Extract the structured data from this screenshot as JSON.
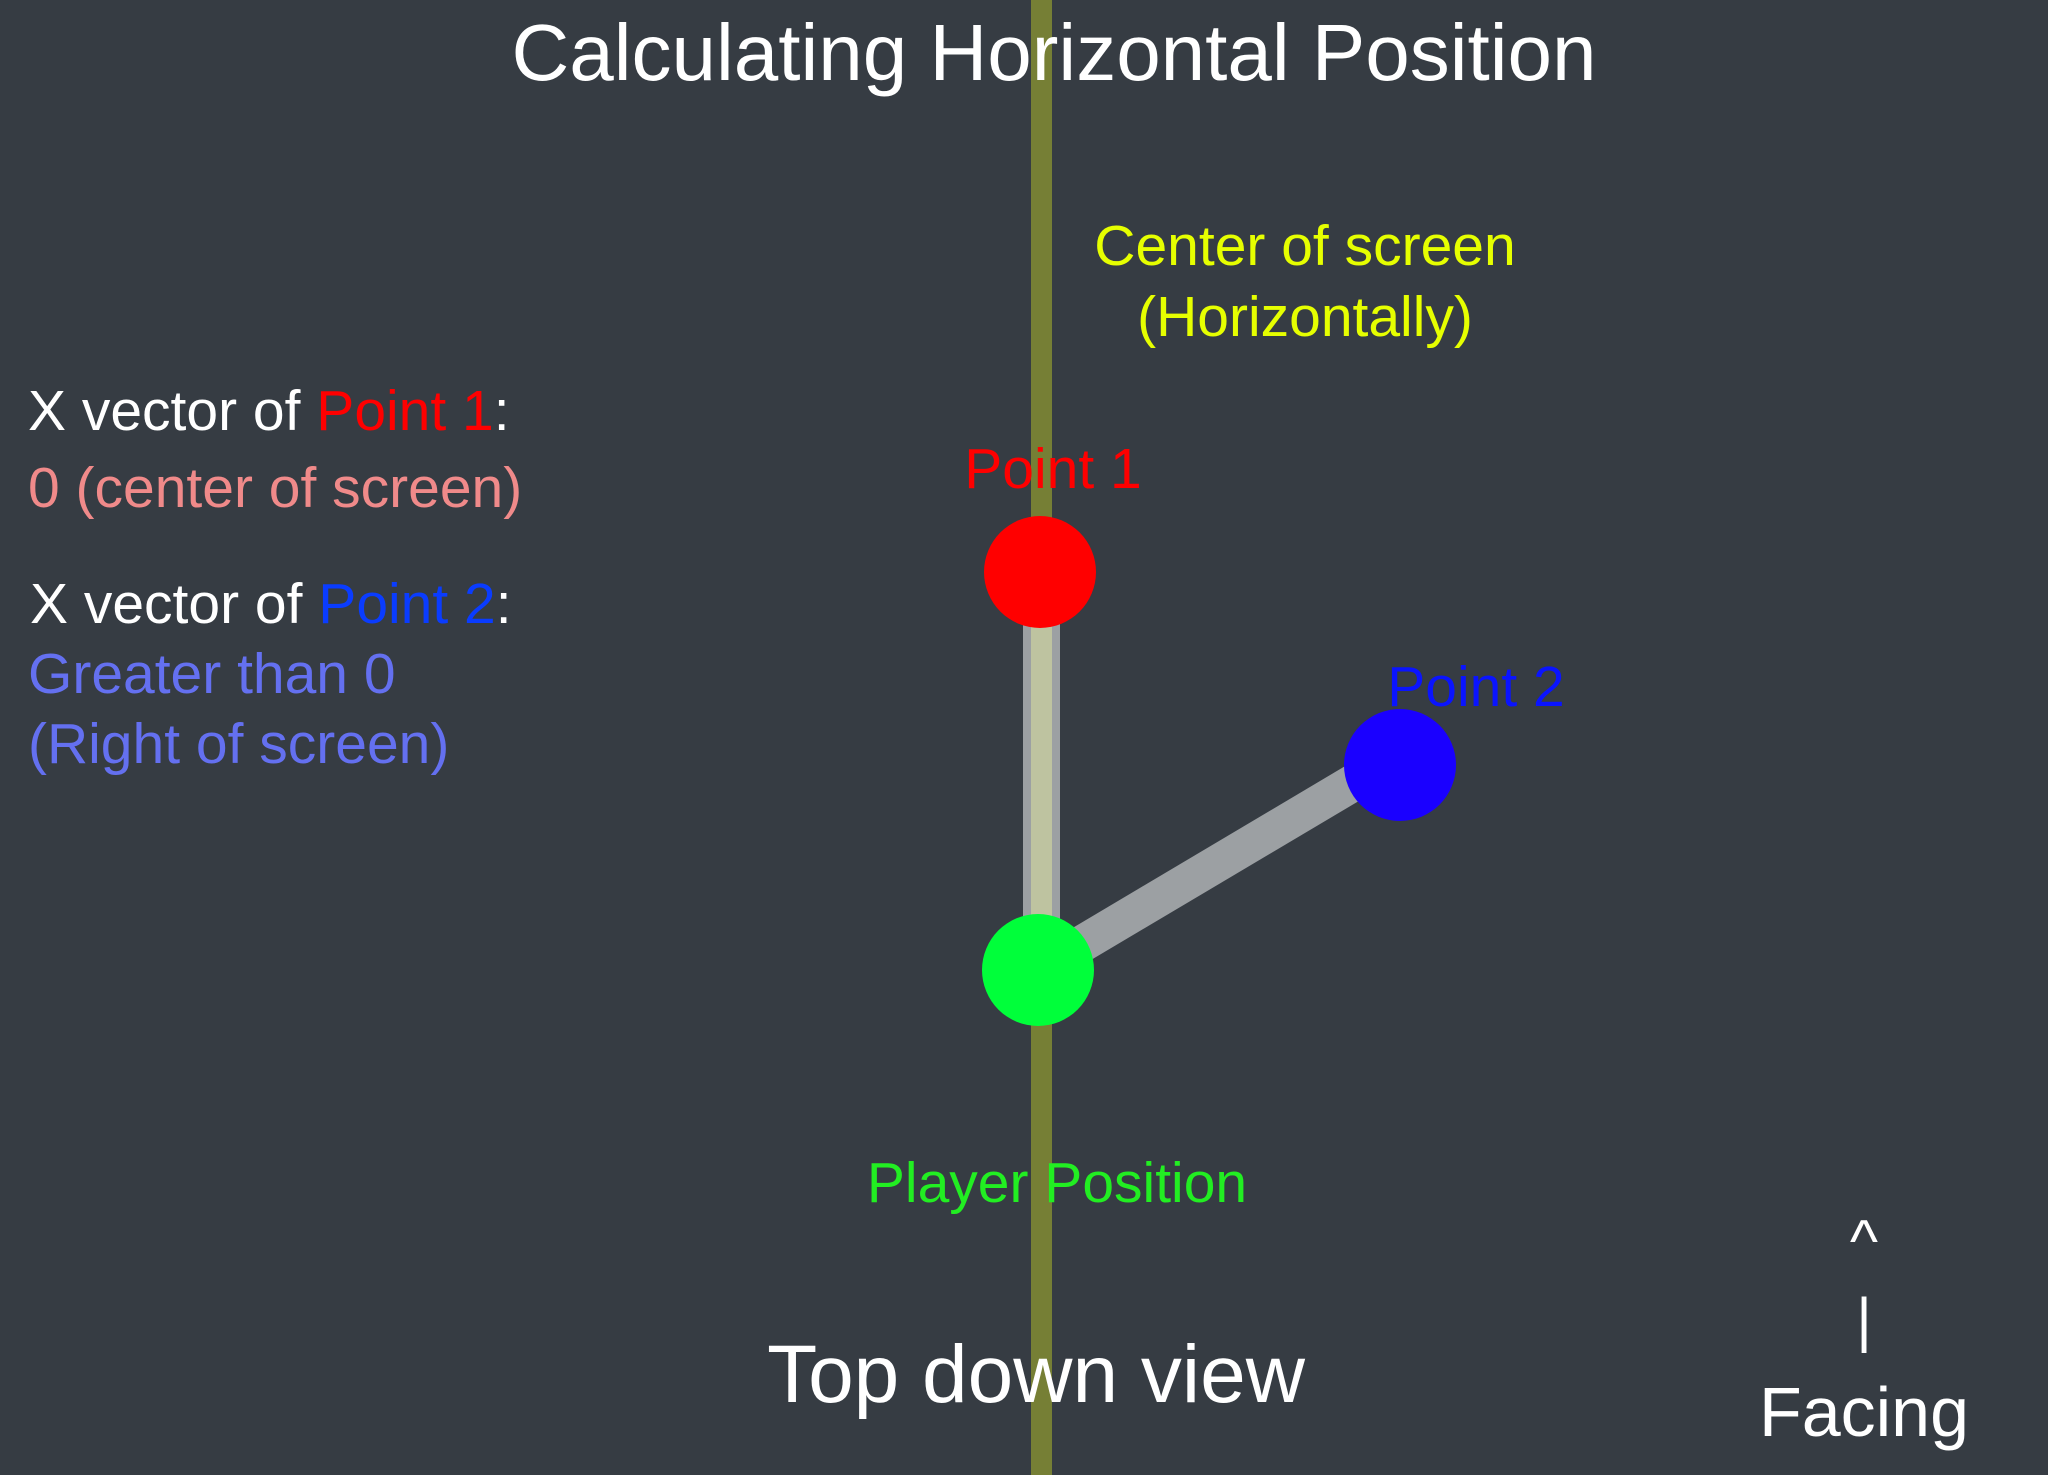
{
  "title": "Calculating Horizontal Position",
  "center_label": {
    "line1": "Center of screen",
    "line2": "(Horizontally)"
  },
  "info": {
    "point1": {
      "prefix": "X vector of ",
      "name": "Point 1",
      "suffix": ":",
      "value": "0 (center of screen)"
    },
    "point2": {
      "prefix": "X vector of ",
      "name": "Point 2",
      "suffix": ":",
      "value_line1": "Greater than 0",
      "value_line2": "(Right of screen)"
    }
  },
  "nodes": {
    "point1": {
      "label": "Point 1",
      "color": "#ff0000"
    },
    "point2": {
      "label": "Point 2",
      "color": "#1a00ff"
    },
    "player": {
      "label": "Player Position",
      "color": "#00ff3a"
    }
  },
  "footer": {
    "caption": "Top down view"
  },
  "facing": {
    "arrow_head": "^",
    "arrow_shaft": "|",
    "label": "Facing"
  },
  "colors": {
    "background": "#363c43",
    "center_line": "#767f35",
    "connector": "#9ca0a3",
    "center_label": "#e6ff00",
    "point1_value": "#f08a8a",
    "point2_value": "#6470f0",
    "point2_label": "#0a14ff"
  }
}
